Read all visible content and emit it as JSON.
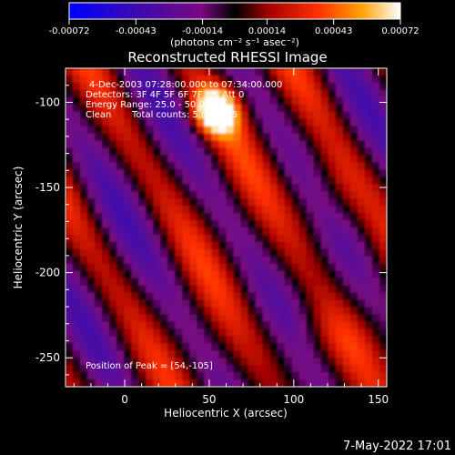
{
  "colorbar": {
    "ticks": [
      "-0.00072",
      "-0.00043",
      "-0.00014",
      "0.00014",
      "0.00043",
      "0.00072"
    ],
    "unit_label": "(photons cm⁻² s⁻¹ asec⁻²)",
    "vmin": -0.00072,
    "vmax": 0.00072
  },
  "chart_data": {
    "type": "heatmap",
    "title": "Reconstructed RHESSI Image",
    "xlabel": "Heliocentric X (arcsec)",
    "ylabel": "Heliocentric Y (arcsec)",
    "xlim": [
      -35,
      155
    ],
    "ylim": [
      -267,
      -80
    ],
    "x_ticks": [
      0,
      50,
      100,
      150
    ],
    "y_ticks": [
      -100,
      -150,
      -200,
      -250
    ],
    "peak": {
      "x": 54,
      "y": -105
    }
  },
  "annotations": {
    "time_range": "4-Dec-2003 07:28:00.000 to 07:34:00.000",
    "detectors": "Detectors: 3F 4F 5F 6F 7F 8F, Att 0",
    "energy_range": "Energy Range: 25.0 - 50.0 keV",
    "method": "Clean",
    "total_counts": "Total counts: 5.05E+05",
    "peak_position": "Position of Peak = [54,-105]"
  },
  "footer": {
    "date": "7-May-2022 17:01"
  }
}
